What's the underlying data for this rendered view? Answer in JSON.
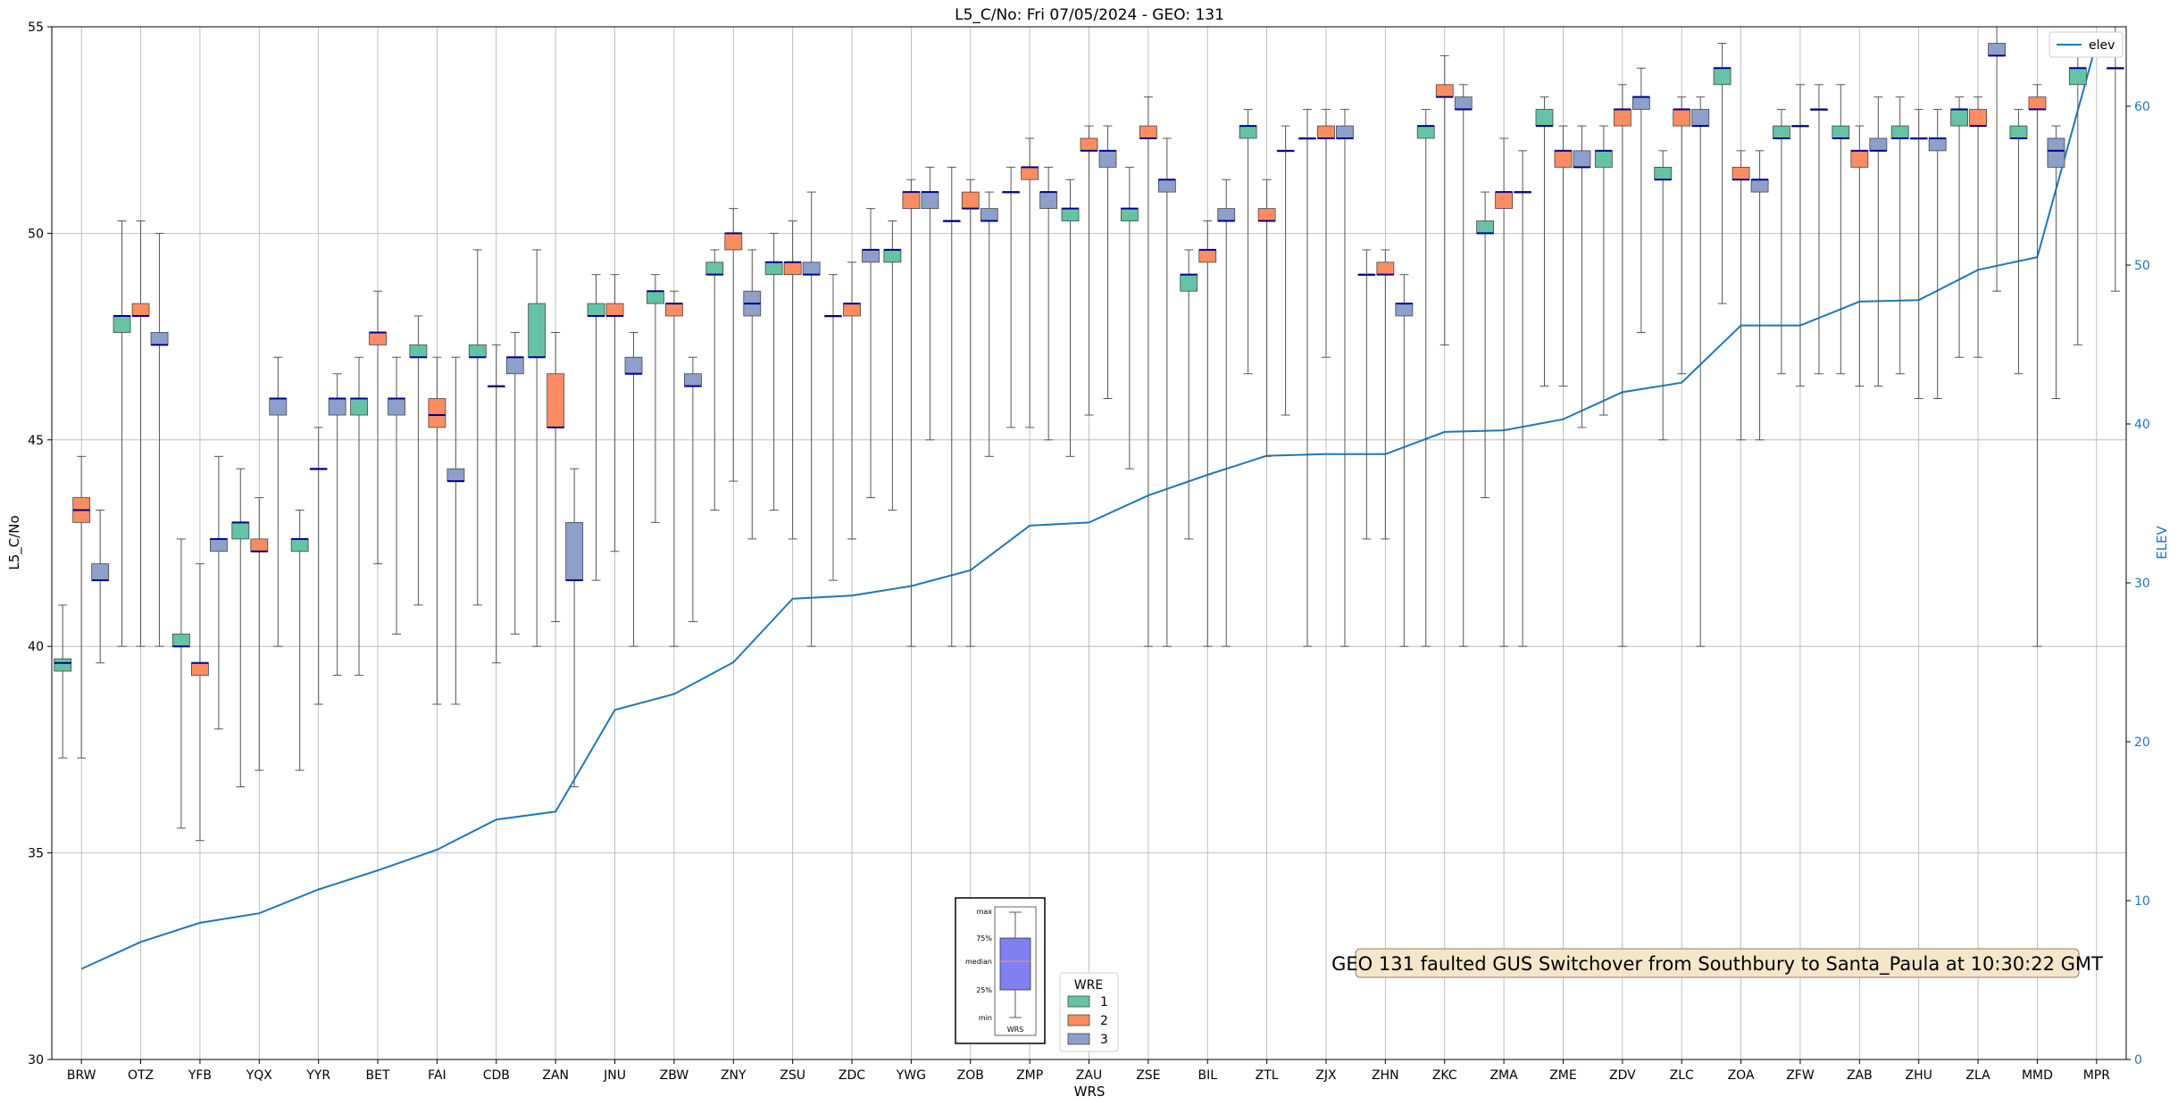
{
  "chart_data": {
    "type": "box",
    "title": "L5_C/No: Fri 07/05/2024 - GEO: 131",
    "xlabel": "WRS",
    "ylabel": "L5_C/No",
    "ylabel_right": "ELEV",
    "ylim": [
      30,
      55
    ],
    "ylim_right": [
      0,
      65
    ],
    "yticks": [
      30,
      35,
      40,
      45,
      50,
      55
    ],
    "yticks_right": [
      0,
      10,
      20,
      30,
      40,
      50,
      60
    ],
    "grid": true,
    "categories": [
      "BRW",
      "OTZ",
      "YFB",
      "YQX",
      "YYR",
      "BET",
      "FAI",
      "CDB",
      "ZAN",
      "JNU",
      "ZBW",
      "ZNY",
      "ZSU",
      "ZDC",
      "YWG",
      "ZOB",
      "ZMP",
      "ZAU",
      "ZSE",
      "BIL",
      "ZTL",
      "ZJX",
      "ZHN",
      "ZKC",
      "ZMA",
      "ZME",
      "ZDV",
      "ZLC",
      "ZOA",
      "ZFW",
      "ZAB",
      "ZHU",
      "ZLA",
      "MMD",
      "MPR"
    ],
    "wre_legend": {
      "title": "WRE",
      "entries": [
        {
          "label": "1",
          "color": "#66c2a5"
        },
        {
          "label": "2",
          "color": "#fc8d62"
        },
        {
          "label": "3",
          "color": "#8da0cb"
        }
      ]
    },
    "elev_series": {
      "name": "elev",
      "color": "#1f77b4",
      "values": [
        5.7,
        7.4,
        8.6,
        9.2,
        10.7,
        11.9,
        13.2,
        15.1,
        15.6,
        22.0,
        23.0,
        25.0,
        29.0,
        29.2,
        29.8,
        30.8,
        33.6,
        33.8,
        35.5,
        36.8,
        38.0,
        38.1,
        38.1,
        39.5,
        39.6,
        40.3,
        42.0,
        42.6,
        46.2,
        46.2,
        47.7,
        47.8,
        49.7,
        50.5,
        64.0
      ]
    },
    "boxes": [
      {
        "station": "BRW",
        "wre": 1,
        "min": 37.3,
        "q1": 39.4,
        "median": 39.6,
        "q3": 39.7,
        "max": 41.0
      },
      {
        "station": "BRW",
        "wre": 2,
        "min": 37.3,
        "q1": 43.0,
        "median": 43.3,
        "q3": 43.6,
        "max": 44.6
      },
      {
        "station": "BRW",
        "wre": 3,
        "min": 39.6,
        "q1": 41.6,
        "median": 41.6,
        "q3": 42.0,
        "max": 43.3
      },
      {
        "station": "OTZ",
        "wre": 1,
        "min": 40.0,
        "q1": 47.6,
        "median": 48.0,
        "q3": 48.0,
        "max": 50.3
      },
      {
        "station": "OTZ",
        "wre": 2,
        "min": 40.0,
        "q1": 48.0,
        "median": 48.0,
        "q3": 48.3,
        "max": 50.3
      },
      {
        "station": "OTZ",
        "wre": 3,
        "min": 40.0,
        "q1": 47.3,
        "median": 47.3,
        "q3": 47.6,
        "max": 50.0
      },
      {
        "station": "YFB",
        "wre": 1,
        "min": 35.6,
        "q1": 40.0,
        "median": 40.0,
        "q3": 40.3,
        "max": 42.6
      },
      {
        "station": "YFB",
        "wre": 2,
        "min": 35.3,
        "q1": 39.3,
        "median": 39.6,
        "q3": 39.6,
        "max": 42.0
      },
      {
        "station": "YFB",
        "wre": 3,
        "min": 38.0,
        "q1": 42.3,
        "median": 42.6,
        "q3": 42.6,
        "max": 44.6
      },
      {
        "station": "YQX",
        "wre": 1,
        "min": 36.6,
        "q1": 42.6,
        "median": 43.0,
        "q3": 43.0,
        "max": 44.3
      },
      {
        "station": "YQX",
        "wre": 2,
        "min": 37.0,
        "q1": 42.3,
        "median": 42.3,
        "q3": 42.6,
        "max": 43.6
      },
      {
        "station": "YQX",
        "wre": 3,
        "min": 40.0,
        "q1": 45.6,
        "median": 46.0,
        "q3": 46.0,
        "max": 47.0
      },
      {
        "station": "YYR",
        "wre": 1,
        "min": 37.0,
        "q1": 42.3,
        "median": 42.6,
        "q3": 42.6,
        "max": 43.3
      },
      {
        "station": "YYR",
        "wre": 2,
        "min": 38.6,
        "q1": 44.3,
        "median": 44.3,
        "q3": 44.3,
        "max": 45.3
      },
      {
        "station": "YYR",
        "wre": 3,
        "min": 39.3,
        "q1": 45.6,
        "median": 46.0,
        "q3": 46.0,
        "max": 46.6
      },
      {
        "station": "BET",
        "wre": 1,
        "min": 39.3,
        "q1": 45.6,
        "median": 46.0,
        "q3": 46.0,
        "max": 47.0
      },
      {
        "station": "BET",
        "wre": 2,
        "min": 42.0,
        "q1": 47.3,
        "median": 47.6,
        "q3": 47.6,
        "max": 48.6
      },
      {
        "station": "BET",
        "wre": 3,
        "min": 40.3,
        "q1": 45.6,
        "median": 46.0,
        "q3": 46.0,
        "max": 47.0
      },
      {
        "station": "FAI",
        "wre": 1,
        "min": 41.0,
        "q1": 47.0,
        "median": 47.0,
        "q3": 47.3,
        "max": 48.0
      },
      {
        "station": "FAI",
        "wre": 2,
        "min": 38.6,
        "q1": 45.3,
        "median": 45.6,
        "q3": 46.0,
        "max": 47.0
      },
      {
        "station": "FAI",
        "wre": 3,
        "min": 38.6,
        "q1": 44.0,
        "median": 44.0,
        "q3": 44.3,
        "max": 47.0
      },
      {
        "station": "CDB",
        "wre": 1,
        "min": 41.0,
        "q1": 47.0,
        "median": 47.0,
        "q3": 47.3,
        "max": 49.6
      },
      {
        "station": "CDB",
        "wre": 2,
        "min": 39.6,
        "q1": 46.3,
        "median": 46.3,
        "q3": 46.3,
        "max": 47.3
      },
      {
        "station": "CDB",
        "wre": 3,
        "min": 40.3,
        "q1": 46.6,
        "median": 47.0,
        "q3": 47.0,
        "max": 47.6
      },
      {
        "station": "ZAN",
        "wre": 1,
        "min": 40.0,
        "q1": 47.0,
        "median": 47.0,
        "q3": 48.3,
        "max": 49.6
      },
      {
        "station": "ZAN",
        "wre": 2,
        "min": 40.6,
        "q1": 45.3,
        "median": 45.3,
        "q3": 46.6,
        "max": 47.6
      },
      {
        "station": "ZAN",
        "wre": 3,
        "min": 36.6,
        "q1": 41.6,
        "median": 41.6,
        "q3": 43.0,
        "max": 44.3
      },
      {
        "station": "JNU",
        "wre": 1,
        "min": 41.6,
        "q1": 48.0,
        "median": 48.0,
        "q3": 48.3,
        "max": 49.0
      },
      {
        "station": "JNU",
        "wre": 2,
        "min": 42.3,
        "q1": 48.0,
        "median": 48.0,
        "q3": 48.3,
        "max": 49.0
      },
      {
        "station": "JNU",
        "wre": 3,
        "min": 40.0,
        "q1": 46.6,
        "median": 46.6,
        "q3": 47.0,
        "max": 47.6
      },
      {
        "station": "ZBW",
        "wre": 1,
        "min": 43.0,
        "q1": 48.3,
        "median": 48.6,
        "q3": 48.6,
        "max": 49.0
      },
      {
        "station": "ZBW",
        "wre": 2,
        "min": 40.0,
        "q1": 48.0,
        "median": 48.3,
        "q3": 48.3,
        "max": 48.6
      },
      {
        "station": "ZBW",
        "wre": 3,
        "min": 40.6,
        "q1": 46.3,
        "median": 46.3,
        "q3": 46.6,
        "max": 47.0
      },
      {
        "station": "ZNY",
        "wre": 1,
        "min": 43.3,
        "q1": 49.0,
        "median": 49.0,
        "q3": 49.3,
        "max": 49.6
      },
      {
        "station": "ZNY",
        "wre": 2,
        "min": 44.0,
        "q1": 49.6,
        "median": 50.0,
        "q3": 50.0,
        "max": 50.6
      },
      {
        "station": "ZNY",
        "wre": 3,
        "min": 42.6,
        "q1": 48.0,
        "median": 48.3,
        "q3": 48.6,
        "max": 49.6
      },
      {
        "station": "ZSU",
        "wre": 1,
        "min": 43.3,
        "q1": 49.0,
        "median": 49.3,
        "q3": 49.3,
        "max": 50.0
      },
      {
        "station": "ZSU",
        "wre": 2,
        "min": 42.6,
        "q1": 49.0,
        "median": 49.3,
        "q3": 49.3,
        "max": 50.3
      },
      {
        "station": "ZSU",
        "wre": 3,
        "min": 40.0,
        "q1": 49.0,
        "median": 49.0,
        "q3": 49.3,
        "max": 51.0
      },
      {
        "station": "ZDC",
        "wre": 1,
        "min": 41.6,
        "q1": 48.0,
        "median": 48.0,
        "q3": 48.0,
        "max": 49.0
      },
      {
        "station": "ZDC",
        "wre": 2,
        "min": 42.6,
        "q1": 48.0,
        "median": 48.3,
        "q3": 48.3,
        "max": 49.3
      },
      {
        "station": "ZDC",
        "wre": 3,
        "min": 43.6,
        "q1": 49.3,
        "median": 49.6,
        "q3": 49.6,
        "max": 50.6
      },
      {
        "station": "YWG",
        "wre": 1,
        "min": 43.3,
        "q1": 49.3,
        "median": 49.6,
        "q3": 49.6,
        "max": 50.3
      },
      {
        "station": "YWG",
        "wre": 2,
        "min": 40.0,
        "q1": 50.6,
        "median": 51.0,
        "q3": 51.0,
        "max": 51.3
      },
      {
        "station": "YWG",
        "wre": 3,
        "min": 45.0,
        "q1": 50.6,
        "median": 51.0,
        "q3": 51.0,
        "max": 51.6
      },
      {
        "station": "ZOB",
        "wre": 1,
        "min": 40.0,
        "q1": 50.3,
        "median": 50.3,
        "q3": 50.3,
        "max": 51.6
      },
      {
        "station": "ZOB",
        "wre": 2,
        "min": 40.0,
        "q1": 50.6,
        "median": 50.6,
        "q3": 51.0,
        "max": 51.3
      },
      {
        "station": "ZOB",
        "wre": 3,
        "min": 44.6,
        "q1": 50.3,
        "median": 50.3,
        "q3": 50.6,
        "max": 51.0
      },
      {
        "station": "ZMP",
        "wre": 1,
        "min": 45.3,
        "q1": 51.0,
        "median": 51.0,
        "q3": 51.0,
        "max": 51.6
      },
      {
        "station": "ZMP",
        "wre": 2,
        "min": 45.3,
        "q1": 51.3,
        "median": 51.6,
        "q3": 51.6,
        "max": 52.3
      },
      {
        "station": "ZMP",
        "wre": 3,
        "min": 45.0,
        "q1": 50.6,
        "median": 51.0,
        "q3": 51.0,
        "max": 51.6
      },
      {
        "station": "ZAU",
        "wre": 1,
        "min": 44.6,
        "q1": 50.3,
        "median": 50.6,
        "q3": 50.6,
        "max": 51.3
      },
      {
        "station": "ZAU",
        "wre": 2,
        "min": 45.6,
        "q1": 52.0,
        "median": 52.0,
        "q3": 52.3,
        "max": 52.6
      },
      {
        "station": "ZAU",
        "wre": 3,
        "min": 46.0,
        "q1": 51.6,
        "median": 52.0,
        "q3": 52.0,
        "max": 52.6
      },
      {
        "station": "ZSE",
        "wre": 1,
        "min": 44.3,
        "q1": 50.3,
        "median": 50.6,
        "q3": 50.6,
        "max": 51.6
      },
      {
        "station": "ZSE",
        "wre": 2,
        "min": 40.0,
        "q1": 52.3,
        "median": 52.3,
        "q3": 52.6,
        "max": 53.3
      },
      {
        "station": "ZSE",
        "wre": 3,
        "min": 40.0,
        "q1": 51.0,
        "median": 51.3,
        "q3": 51.3,
        "max": 52.3
      },
      {
        "station": "BIL",
        "wre": 1,
        "min": 42.6,
        "q1": 48.6,
        "median": 49.0,
        "q3": 49.0,
        "max": 49.6
      },
      {
        "station": "BIL",
        "wre": 2,
        "min": 40.0,
        "q1": 49.3,
        "median": 49.6,
        "q3": 49.6,
        "max": 50.3
      },
      {
        "station": "BIL",
        "wre": 3,
        "min": 40.0,
        "q1": 50.3,
        "median": 50.3,
        "q3": 50.6,
        "max": 51.3
      },
      {
        "station": "ZTL",
        "wre": 1,
        "min": 46.6,
        "q1": 52.3,
        "median": 52.6,
        "q3": 52.6,
        "max": 53.0
      },
      {
        "station": "ZTL",
        "wre": 2,
        "min": 44.6,
        "q1": 50.3,
        "median": 50.3,
        "q3": 50.6,
        "max": 51.3
      },
      {
        "station": "ZTL",
        "wre": 3,
        "min": 45.6,
        "q1": 52.0,
        "median": 52.0,
        "q3": 52.0,
        "max": 52.6
      },
      {
        "station": "ZJX",
        "wre": 1,
        "min": 40.0,
        "q1": 52.3,
        "median": 52.3,
        "q3": 52.3,
        "max": 53.0
      },
      {
        "station": "ZJX",
        "wre": 2,
        "min": 47.0,
        "q1": 52.3,
        "median": 52.3,
        "q3": 52.6,
        "max": 53.0
      },
      {
        "station": "ZJX",
        "wre": 3,
        "min": 40.0,
        "q1": 52.3,
        "median": 52.3,
        "q3": 52.6,
        "max": 53.0
      },
      {
        "station": "ZHN",
        "wre": 1,
        "min": 42.6,
        "q1": 49.0,
        "median": 49.0,
        "q3": 49.0,
        "max": 49.6
      },
      {
        "station": "ZHN",
        "wre": 2,
        "min": 42.6,
        "q1": 49.0,
        "median": 49.0,
        "q3": 49.3,
        "max": 49.6
      },
      {
        "station": "ZHN",
        "wre": 3,
        "min": 40.0,
        "q1": 48.0,
        "median": 48.3,
        "q3": 48.3,
        "max": 49.0
      },
      {
        "station": "ZKC",
        "wre": 1,
        "min": 40.0,
        "q1": 52.3,
        "median": 52.6,
        "q3": 52.6,
        "max": 53.0
      },
      {
        "station": "ZKC",
        "wre": 2,
        "min": 47.3,
        "q1": 53.3,
        "median": 53.3,
        "q3": 53.6,
        "max": 54.3
      },
      {
        "station": "ZKC",
        "wre": 3,
        "min": 40.0,
        "q1": 53.0,
        "median": 53.0,
        "q3": 53.3,
        "max": 53.6
      },
      {
        "station": "ZMA",
        "wre": 1,
        "min": 43.6,
        "q1": 50.0,
        "median": 50.0,
        "q3": 50.3,
        "max": 51.0
      },
      {
        "station": "ZMA",
        "wre": 2,
        "min": 40.0,
        "q1": 50.6,
        "median": 51.0,
        "q3": 51.0,
        "max": 52.3
      },
      {
        "station": "ZMA",
        "wre": 3,
        "min": 40.0,
        "q1": 51.0,
        "median": 51.0,
        "q3": 51.0,
        "max": 52.0
      },
      {
        "station": "ZME",
        "wre": 1,
        "min": 46.3,
        "q1": 52.6,
        "median": 52.6,
        "q3": 53.0,
        "max": 53.3
      },
      {
        "station": "ZME",
        "wre": 2,
        "min": 46.3,
        "q1": 51.6,
        "median": 52.0,
        "q3": 52.0,
        "max": 52.6
      },
      {
        "station": "ZME",
        "wre": 3,
        "min": 45.3,
        "q1": 51.6,
        "median": 51.6,
        "q3": 52.0,
        "max": 52.6
      },
      {
        "station": "ZDV",
        "wre": 1,
        "min": 45.6,
        "q1": 51.6,
        "median": 52.0,
        "q3": 52.0,
        "max": 52.6
      },
      {
        "station": "ZDV",
        "wre": 2,
        "min": 40.0,
        "q1": 52.6,
        "median": 53.0,
        "q3": 53.0,
        "max": 53.6
      },
      {
        "station": "ZDV",
        "wre": 3,
        "min": 47.6,
        "q1": 53.0,
        "median": 53.3,
        "q3": 53.3,
        "max": 54.0
      },
      {
        "station": "ZLC",
        "wre": 1,
        "min": 45.0,
        "q1": 51.3,
        "median": 51.3,
        "q3": 51.6,
        "max": 52.0
      },
      {
        "station": "ZLC",
        "wre": 2,
        "min": 46.6,
        "q1": 52.6,
        "median": 53.0,
        "q3": 53.0,
        "max": 53.3
      },
      {
        "station": "ZLC",
        "wre": 3,
        "min": 40.0,
        "q1": 52.6,
        "median": 52.6,
        "q3": 53.0,
        "max": 53.3
      },
      {
        "station": "ZOA",
        "wre": 1,
        "min": 48.3,
        "q1": 53.6,
        "median": 54.0,
        "q3": 54.0,
        "max": 54.6
      },
      {
        "station": "ZOA",
        "wre": 2,
        "min": 45.0,
        "q1": 51.3,
        "median": 51.3,
        "q3": 51.6,
        "max": 52.0
      },
      {
        "station": "ZOA",
        "wre": 3,
        "min": 45.0,
        "q1": 51.0,
        "median": 51.3,
        "q3": 51.3,
        "max": 52.0
      },
      {
        "station": "ZFW",
        "wre": 1,
        "min": 46.6,
        "q1": 52.3,
        "median": 52.3,
        "q3": 52.6,
        "max": 53.0
      },
      {
        "station": "ZFW",
        "wre": 2,
        "min": 46.3,
        "q1": 52.6,
        "median": 52.6,
        "q3": 52.6,
        "max": 53.6
      },
      {
        "station": "ZFW",
        "wre": 3,
        "min": 46.6,
        "q1": 53.0,
        "median": 53.0,
        "q3": 53.0,
        "max": 53.6
      },
      {
        "station": "ZAB",
        "wre": 1,
        "min": 46.6,
        "q1": 52.3,
        "median": 52.3,
        "q3": 52.6,
        "max": 53.6
      },
      {
        "station": "ZAB",
        "wre": 2,
        "min": 46.3,
        "q1": 51.6,
        "median": 52.0,
        "q3": 52.0,
        "max": 52.6
      },
      {
        "station": "ZAB",
        "wre": 3,
        "min": 46.3,
        "q1": 52.0,
        "median": 52.0,
        "q3": 52.3,
        "max": 53.3
      },
      {
        "station": "ZHU",
        "wre": 1,
        "min": 46.6,
        "q1": 52.3,
        "median": 52.3,
        "q3": 52.6,
        "max": 53.3
      },
      {
        "station": "ZHU",
        "wre": 2,
        "min": 46.0,
        "q1": 52.3,
        "median": 52.3,
        "q3": 52.3,
        "max": 53.0
      },
      {
        "station": "ZHU",
        "wre": 3,
        "min": 46.0,
        "q1": 52.0,
        "median": 52.3,
        "q3": 52.3,
        "max": 53.0
      },
      {
        "station": "ZLA",
        "wre": 1,
        "min": 47.0,
        "q1": 52.6,
        "median": 53.0,
        "q3": 53.0,
        "max": 53.3
      },
      {
        "station": "ZLA",
        "wre": 2,
        "min": 47.0,
        "q1": 52.6,
        "median": 52.6,
        "q3": 53.0,
        "max": 53.3
      },
      {
        "station": "ZLA",
        "wre": 3,
        "min": 48.6,
        "q1": 54.3,
        "median": 54.3,
        "q3": 54.6,
        "max": 55.0
      },
      {
        "station": "MMD",
        "wre": 1,
        "min": 46.6,
        "q1": 52.3,
        "median": 52.3,
        "q3": 52.6,
        "max": 53.0
      },
      {
        "station": "MMD",
        "wre": 2,
        "min": 40.0,
        "q1": 53.0,
        "median": 53.0,
        "q3": 53.3,
        "max": 53.6
      },
      {
        "station": "MMD",
        "wre": 3,
        "min": 46.0,
        "q1": 51.6,
        "median": 52.0,
        "q3": 52.3,
        "max": 52.6
      },
      {
        "station": "MPR",
        "wre": 1,
        "min": 47.3,
        "q1": 53.6,
        "median": 54.0,
        "q3": 54.0,
        "max": 54.6
      },
      {
        "station": "MPR",
        "wre": 3,
        "min": 48.6,
        "q1": 54.0,
        "median": 54.0,
        "q3": 54.0,
        "max": 55.0
      }
    ],
    "elev_legend_label": "elev",
    "annotation": "GEO 131 faulted GUS Switchover from Southbury to Santa_Paula at 10:30:22 GMT",
    "key_inset": {
      "labels": [
        "max",
        "75%",
        "median",
        "25%",
        "min"
      ],
      "xlabel": "WRS",
      "box_color": "#8080f0"
    }
  }
}
